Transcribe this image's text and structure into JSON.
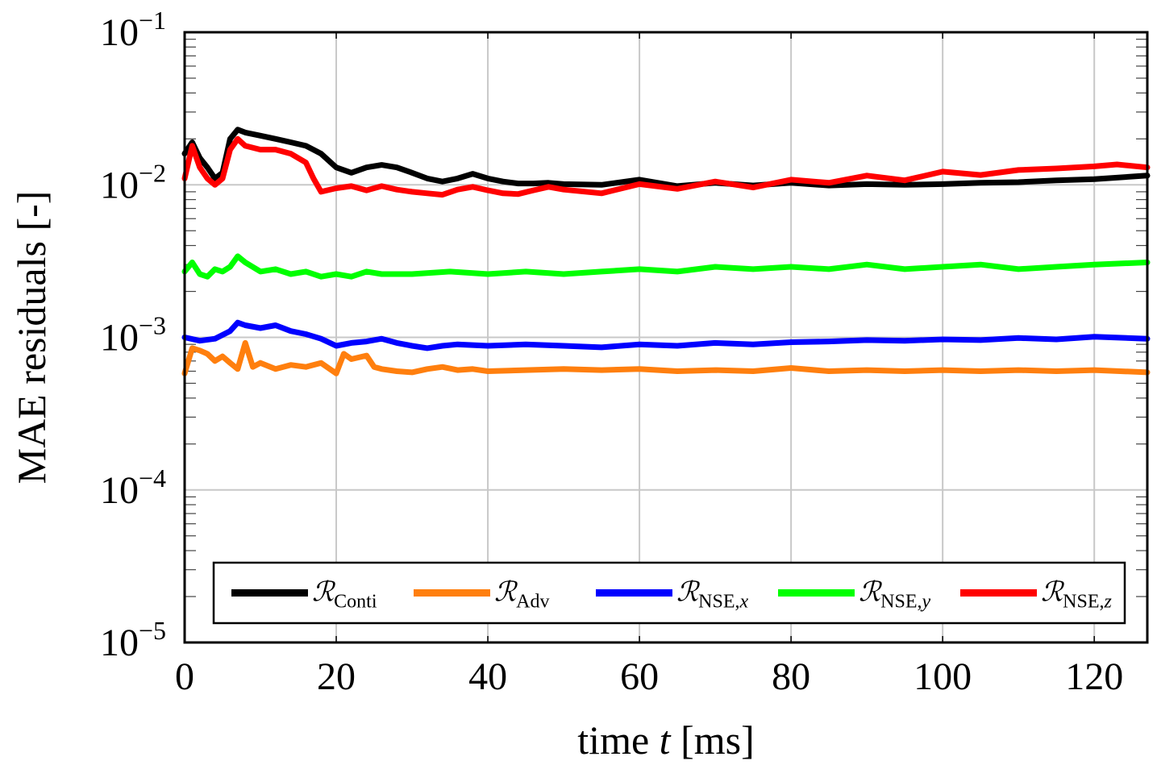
{
  "chart_data": {
    "type": "line",
    "xlabel": "time t [ms]",
    "ylabel": "MAE residuals [-]",
    "yscale": "log",
    "xlim": [
      0,
      127
    ],
    "ylim": [
      1e-05,
      0.1
    ],
    "grid": true,
    "legend_position": "bottom",
    "x_ticks": [
      0,
      20,
      40,
      60,
      80,
      100,
      120
    ],
    "y_ticks": [
      {
        "value": 0.1,
        "base": "10",
        "exp": "−1"
      },
      {
        "value": 0.01,
        "base": "10",
        "exp": "−2"
      },
      {
        "value": 0.001,
        "base": "10",
        "exp": "−3"
      },
      {
        "value": 0.0001,
        "base": "10",
        "exp": "−4"
      },
      {
        "value": 1e-05,
        "base": "10",
        "exp": "−5"
      }
    ],
    "series": [
      {
        "name": "R_Conti",
        "symbol": "ℛ",
        "subscript": "Conti",
        "color": "#000000",
        "x": [
          0,
          1,
          2,
          3,
          4,
          5,
          6,
          7,
          8,
          10,
          12,
          14,
          16,
          18,
          20,
          22,
          24,
          26,
          28,
          30,
          32,
          34,
          36,
          38,
          40,
          42,
          44,
          46,
          48,
          50,
          55,
          60,
          65,
          70,
          75,
          80,
          85,
          90,
          95,
          100,
          105,
          110,
          115,
          120,
          127
        ],
        "values": [
          0.016,
          0.019,
          0.015,
          0.013,
          0.011,
          0.012,
          0.02,
          0.023,
          0.022,
          0.021,
          0.02,
          0.019,
          0.018,
          0.016,
          0.013,
          0.012,
          0.013,
          0.0135,
          0.013,
          0.012,
          0.011,
          0.0105,
          0.011,
          0.0118,
          0.011,
          0.0105,
          0.0102,
          0.0102,
          0.0103,
          0.0101,
          0.01,
          0.0108,
          0.0098,
          0.0103,
          0.0099,
          0.0103,
          0.0099,
          0.0101,
          0.01,
          0.0101,
          0.0103,
          0.0104,
          0.0107,
          0.0109,
          0.0115
        ]
      },
      {
        "name": "R_Adv",
        "symbol": "ℛ",
        "subscript": "Adv",
        "color": "#ff7f0e",
        "x": [
          0,
          1,
          2,
          3,
          4,
          5,
          6,
          7,
          8,
          9,
          10,
          12,
          14,
          16,
          18,
          20,
          21,
          22,
          24,
          25,
          26,
          28,
          30,
          32,
          34,
          36,
          38,
          40,
          45,
          50,
          55,
          60,
          65,
          70,
          75,
          80,
          85,
          90,
          95,
          100,
          105,
          110,
          115,
          120,
          127
        ],
        "values": [
          0.00058,
          0.00085,
          0.00082,
          0.00078,
          0.0007,
          0.00075,
          0.00068,
          0.00062,
          0.00092,
          0.00064,
          0.00068,
          0.00062,
          0.00066,
          0.00064,
          0.00068,
          0.00058,
          0.00078,
          0.00072,
          0.00076,
          0.00064,
          0.00062,
          0.0006,
          0.00059,
          0.00062,
          0.00064,
          0.00061,
          0.00062,
          0.0006,
          0.00061,
          0.00062,
          0.00061,
          0.00062,
          0.0006,
          0.00061,
          0.0006,
          0.00063,
          0.0006,
          0.00061,
          0.0006,
          0.00061,
          0.0006,
          0.00061,
          0.0006,
          0.00061,
          0.00059
        ]
      },
      {
        "name": "R_NSE,x",
        "symbol": "ℛ",
        "subscript": "NSE,",
        "subscript_var": "x",
        "color": "#0000ff",
        "x": [
          0,
          2,
          4,
          6,
          7,
          8,
          10,
          12,
          14,
          16,
          18,
          20,
          22,
          24,
          26,
          28,
          30,
          32,
          34,
          36,
          40,
          45,
          50,
          55,
          60,
          65,
          70,
          75,
          80,
          85,
          90,
          95,
          100,
          105,
          110,
          115,
          120,
          127
        ],
        "values": [
          0.001,
          0.00095,
          0.00098,
          0.0011,
          0.00125,
          0.0012,
          0.00115,
          0.0012,
          0.0011,
          0.00105,
          0.00098,
          0.00088,
          0.00092,
          0.00094,
          0.00098,
          0.00092,
          0.00088,
          0.00085,
          0.00088,
          0.0009,
          0.00088,
          0.0009,
          0.00088,
          0.00086,
          0.0009,
          0.00088,
          0.00092,
          0.0009,
          0.00093,
          0.00094,
          0.00096,
          0.00095,
          0.00097,
          0.00096,
          0.00099,
          0.00097,
          0.00101,
          0.00098
        ]
      },
      {
        "name": "R_NSE,y",
        "symbol": "ℛ",
        "subscript": "NSE,",
        "subscript_var": "y",
        "color": "#00ff00",
        "x": [
          0,
          1,
          2,
          3,
          4,
          5,
          6,
          7,
          8,
          10,
          12,
          14,
          16,
          18,
          20,
          22,
          24,
          26,
          30,
          35,
          40,
          45,
          50,
          55,
          60,
          65,
          70,
          75,
          80,
          85,
          90,
          95,
          100,
          105,
          110,
          115,
          120,
          127
        ],
        "values": [
          0.0027,
          0.0031,
          0.0026,
          0.0025,
          0.0028,
          0.0027,
          0.0029,
          0.0034,
          0.0031,
          0.0027,
          0.0028,
          0.0026,
          0.0027,
          0.0025,
          0.0026,
          0.0025,
          0.0027,
          0.0026,
          0.0026,
          0.0027,
          0.0026,
          0.0027,
          0.0026,
          0.0027,
          0.0028,
          0.0027,
          0.0029,
          0.0028,
          0.0029,
          0.0028,
          0.003,
          0.0028,
          0.0029,
          0.003,
          0.0028,
          0.0029,
          0.003,
          0.0031
        ]
      },
      {
        "name": "R_NSE,z",
        "symbol": "ℛ",
        "subscript": "NSE,",
        "subscript_var": "z",
        "color": "#ff0000",
        "x": [
          0,
          1,
          2,
          3,
          4,
          5,
          6,
          7,
          8,
          10,
          12,
          14,
          16,
          17,
          18,
          20,
          22,
          24,
          26,
          28,
          30,
          32,
          34,
          36,
          38,
          40,
          42,
          44,
          46,
          48,
          50,
          55,
          60,
          65,
          70,
          75,
          80,
          85,
          90,
          95,
          100,
          105,
          110,
          115,
          120,
          123,
          127
        ],
        "values": [
          0.011,
          0.018,
          0.013,
          0.011,
          0.01,
          0.011,
          0.017,
          0.02,
          0.018,
          0.017,
          0.017,
          0.016,
          0.014,
          0.011,
          0.009,
          0.0095,
          0.0098,
          0.0092,
          0.0098,
          0.0093,
          0.009,
          0.0088,
          0.0086,
          0.0093,
          0.0097,
          0.0092,
          0.0088,
          0.0087,
          0.0092,
          0.0097,
          0.0093,
          0.0088,
          0.0101,
          0.0094,
          0.0105,
          0.0096,
          0.0108,
          0.0103,
          0.0115,
          0.0107,
          0.0122,
          0.0116,
          0.0125,
          0.0128,
          0.0132,
          0.0136,
          0.013
        ]
      }
    ]
  }
}
